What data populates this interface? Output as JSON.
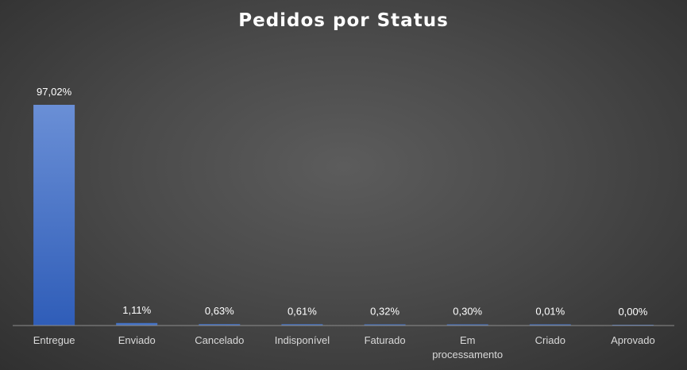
{
  "chart_data": {
    "type": "bar",
    "title": "Pedidos por Status",
    "categories": [
      "Entregue",
      "Enviado",
      "Cancelado",
      "Indisponível",
      "Faturado",
      "Em processamento",
      "Criado",
      "Aprovado"
    ],
    "category_lines": [
      [
        "Entregue"
      ],
      [
        "Enviado"
      ],
      [
        "Cancelado"
      ],
      [
        "Indisponível"
      ],
      [
        "Faturado"
      ],
      [
        "Em",
        "processamento"
      ],
      [
        "Criado"
      ],
      [
        "Aprovado"
      ]
    ],
    "values": [
      97.02,
      1.11,
      0.63,
      0.61,
      0.32,
      0.3,
      0.01,
      0.0
    ],
    "value_labels": [
      "97,02%",
      "1,11%",
      "0,63%",
      "0,61%",
      "0,32%",
      "0,30%",
      "0,01%",
      "0,00%"
    ],
    "ylim": [
      0,
      100
    ],
    "bar_color": "#4472c4",
    "grid": false,
    "legend": "none"
  }
}
